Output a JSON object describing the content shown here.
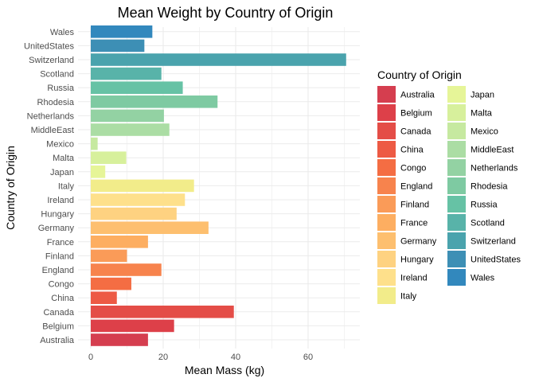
{
  "chart_data": {
    "type": "bar",
    "orientation": "horizontal",
    "title": "Mean Weight by Country of Origin",
    "xlabel": "Mean Mass (kg)",
    "ylabel": "Country of Origin",
    "xlim": [
      0,
      72
    ],
    "x_ticks": [
      0,
      20,
      40,
      60
    ],
    "grid": true,
    "legend": {
      "title": "Country of Origin",
      "position": "right",
      "columns": 2
    },
    "categories": [
      "Australia",
      "Belgium",
      "Canada",
      "China",
      "Congo",
      "England",
      "Finland",
      "France",
      "Germany",
      "Hungary",
      "Ireland",
      "Italy",
      "Japan",
      "Malta",
      "Mexico",
      "MiddleEast",
      "Netherlands",
      "Rhodesia",
      "Russia",
      "Scotland",
      "Switzerland",
      "UnitedStates",
      "Wales"
    ],
    "values": [
      15.8,
      23.0,
      39.5,
      7.2,
      11.2,
      19.5,
      10.0,
      15.8,
      32.5,
      23.7,
      26.0,
      28.5,
      4.0,
      9.8,
      1.9,
      21.7,
      20.2,
      35.0,
      25.4,
      19.5,
      70.5,
      14.8,
      17.0
    ],
    "colors": [
      "#d53e4f",
      "#dd4049",
      "#e44d47",
      "#ed5a44",
      "#f46d43",
      "#f7834d",
      "#fa9b58",
      "#fdae61",
      "#fdbf6f",
      "#fed281",
      "#fee08b",
      "#f2ec8a",
      "#e6f598",
      "#d7f09c",
      "#c6e9a0",
      "#abdda4",
      "#93d2a3",
      "#7ecaa2",
      "#66c2a5",
      "#58b3a9",
      "#4aa3ad",
      "#3d8fb5",
      "#3288bd"
    ]
  }
}
